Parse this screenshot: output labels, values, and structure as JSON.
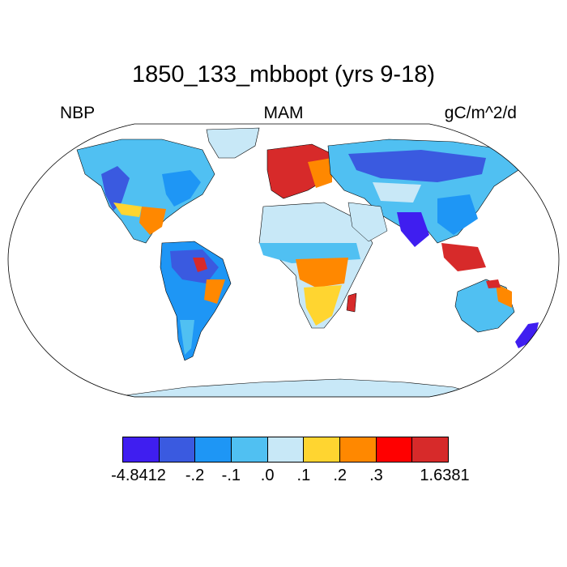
{
  "title": "1850_133_mbbopt (yrs 9-18)",
  "left_label": "NBP",
  "center_label": "MAM",
  "right_label": "gC/m^2/d",
  "colorbar": {
    "colors": [
      "#3f1ef0",
      "#3a5ae0",
      "#1e96f5",
      "#50c0f2",
      "#c8e8f7",
      "#ffd530",
      "#ff8800",
      "#ff0000",
      "#d72a2a"
    ],
    "labels": [
      "-4.8412",
      "-.2",
      "-.1",
      ".0",
      ".1",
      ".2",
      ".3",
      "1.6381"
    ]
  },
  "colors": {
    "ocean": "#ffffff",
    "coast": "#000000"
  }
}
